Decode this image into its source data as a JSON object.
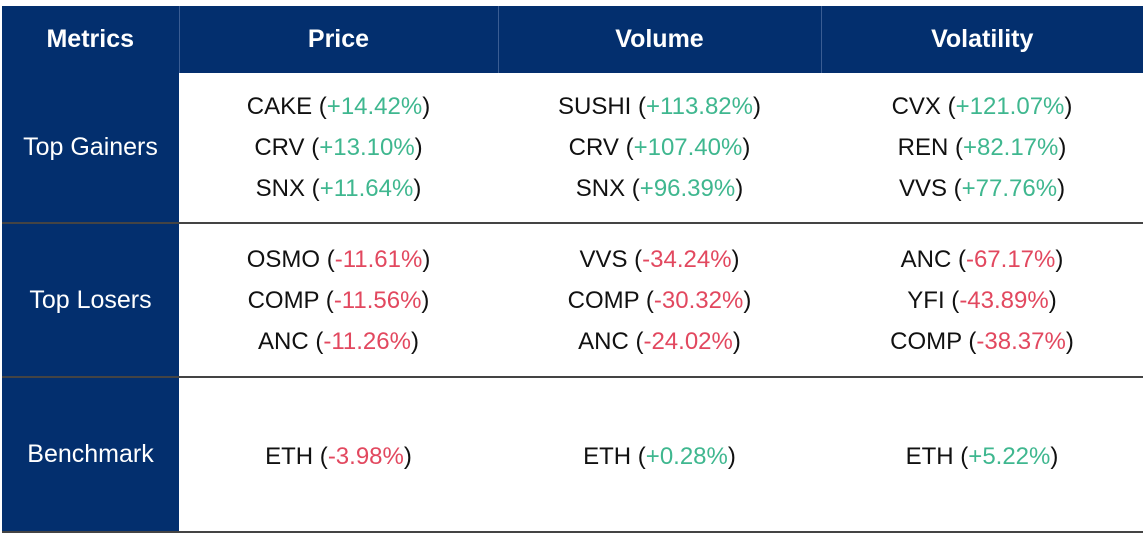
{
  "header": {
    "metrics": "Metrics",
    "price": "Price",
    "volume": "Volume",
    "volatility": "Volatility"
  },
  "rows": {
    "gainers": {
      "label": "Top Gainers",
      "price": [
        {
          "token": "CAKE",
          "change": "+14.42%"
        },
        {
          "token": "CRV",
          "change": "+13.10%"
        },
        {
          "token": "SNX",
          "change": "+11.64%"
        }
      ],
      "volume": [
        {
          "token": "SUSHI",
          "change": "+113.82%"
        },
        {
          "token": "CRV",
          "change": "+107.40%"
        },
        {
          "token": "SNX",
          "change": "+96.39%"
        }
      ],
      "volatility": [
        {
          "token": "CVX",
          "change": "+121.07%"
        },
        {
          "token": "REN",
          "change": "+82.17%"
        },
        {
          "token": "VVS",
          "change": "+77.76%"
        }
      ]
    },
    "losers": {
      "label": "Top Losers",
      "price": [
        {
          "token": "OSMO",
          "change": "-11.61%"
        },
        {
          "token": "COMP",
          "change": "-11.56%"
        },
        {
          "token": "ANC",
          "change": "-11.26%"
        }
      ],
      "volume": [
        {
          "token": "VVS",
          "change": "-34.24%"
        },
        {
          "token": "COMP",
          "change": "-30.32%"
        },
        {
          "token": "ANC",
          "change": "-24.02%"
        }
      ],
      "volatility": [
        {
          "token": "ANC",
          "change": "-67.17%"
        },
        {
          "token": "YFI",
          "change": "-43.89%"
        },
        {
          "token": "COMP",
          "change": "-38.37%"
        }
      ]
    },
    "benchmark": {
      "label": "Benchmark",
      "price": [
        {
          "token": "ETH",
          "change": "-3.98%"
        }
      ],
      "volume": [
        {
          "token": "ETH",
          "change": "+0.28%"
        }
      ],
      "volatility": [
        {
          "token": "ETH",
          "change": "+5.22%"
        }
      ]
    }
  },
  "colors": {
    "header_bg": "#032f6e",
    "positive": "#3fb78f",
    "negative": "#e2485f"
  }
}
